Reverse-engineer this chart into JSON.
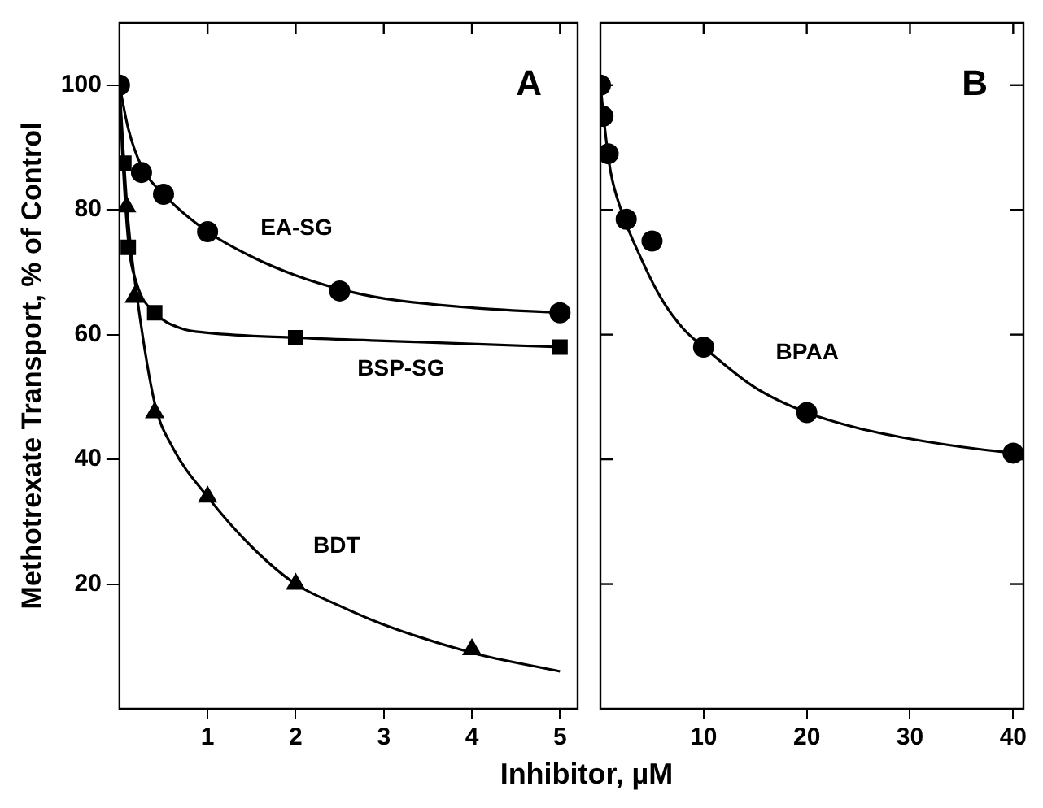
{
  "chart_data": [
    {
      "type": "scatter",
      "title": "A",
      "xlabel": "Inhibitor, µM",
      "ylabel": "Methotrexate Transport, % of Control",
      "xlim": [
        0,
        5.2
      ],
      "xticks": [
        1,
        2,
        3,
        4,
        5
      ],
      "ylim": [
        0,
        110
      ],
      "yticks": [
        20,
        40,
        60,
        80,
        100
      ],
      "grid": false,
      "legend": false,
      "series": [
        {
          "name": "EA-SG",
          "marker": "circle",
          "color": "#000000",
          "x": [
            0,
            0.25,
            0.5,
            1,
            2.5,
            5
          ],
          "values": [
            100,
            86,
            82.5,
            76.5,
            67,
            63.5
          ]
        },
        {
          "name": "BSP-SG",
          "marker": "square",
          "color": "#000000",
          "x": [
            0.05,
            0.1,
            0.4,
            2,
            5
          ],
          "values": [
            87.5,
            74,
            63.5,
            59.5,
            58
          ]
        },
        {
          "name": "BDT",
          "marker": "triangle",
          "color": "#000000",
          "x": [
            0.08,
            0.17,
            0.4,
            1,
            2,
            4
          ],
          "values": [
            80.5,
            66,
            47.5,
            34,
            20,
            9.5
          ]
        },
        {
          "type": "line",
          "marker": "none",
          "color": "#000000",
          "x": [
            0,
            0.1,
            0.25,
            0.5,
            1,
            1.5,
            2,
            2.5,
            3,
            4,
            5
          ],
          "values": [
            100,
            93,
            87,
            82.5,
            76.5,
            72.5,
            69.5,
            67.3,
            65.8,
            64.3,
            63.5
          ]
        },
        {
          "type": "line",
          "marker": "none",
          "color": "#000000",
          "x": [
            0,
            0.03,
            0.1,
            0.2,
            0.4,
            0.7,
            1,
            2,
            3,
            4,
            5
          ],
          "values": [
            100,
            90,
            75,
            68,
            63.5,
            61,
            60.3,
            59.5,
            59,
            58.5,
            58
          ]
        },
        {
          "type": "line",
          "marker": "none",
          "color": "#000000",
          "x": [
            0,
            0.05,
            0.1,
            0.2,
            0.4,
            0.6,
            1,
            1.5,
            2,
            2.5,
            3,
            4,
            5
          ],
          "values": [
            100,
            88,
            78,
            66,
            49,
            42,
            34,
            26,
            20,
            16.5,
            13.5,
            9,
            6
          ]
        }
      ]
    },
    {
      "type": "scatter",
      "title": "B",
      "xlim": [
        0,
        41
      ],
      "xticks": [
        10,
        20,
        30,
        40
      ],
      "ylim": [
        0,
        110
      ],
      "yticks": [
        20,
        40,
        60,
        80,
        100
      ],
      "tick_labels": "x",
      "grid": false,
      "legend": false,
      "series": [
        {
          "name": "BPAA",
          "marker": "circle",
          "color": "#000000",
          "x": [
            0,
            0.25,
            0.75,
            2.5,
            5,
            10,
            20,
            40
          ],
          "values": [
            100,
            95,
            89,
            78.5,
            75,
            58,
            47.5,
            41
          ]
        },
        {
          "type": "line",
          "marker": "none",
          "color": "#000000",
          "x": [
            0,
            0.5,
            1,
            2,
            4,
            6,
            8,
            10,
            15,
            20,
            25,
            30,
            35,
            40
          ],
          "values": [
            100,
            92,
            86,
            80,
            72,
            65.5,
            61,
            58,
            51.5,
            47.5,
            45,
            43.3,
            42,
            41
          ]
        }
      ]
    }
  ]
}
